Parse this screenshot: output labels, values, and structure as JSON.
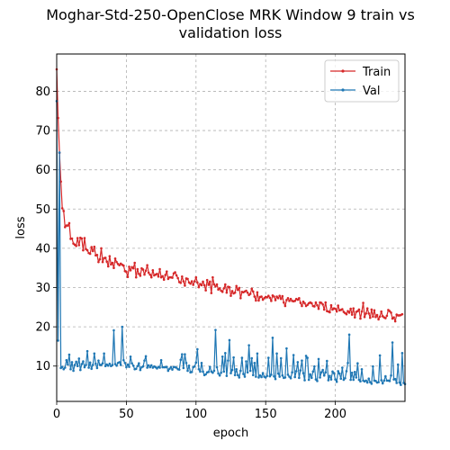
{
  "chart_data": {
    "type": "line",
    "title_lines": [
      "Moghar-Std-250-OpenClose MRK Window 9 train vs",
      "validation loss"
    ],
    "xlabel": "epoch",
    "ylabel": "loss",
    "xlim": [
      0,
      250
    ],
    "ylim": [
      1.0,
      89.5
    ],
    "xticks": [
      0,
      50,
      100,
      150,
      200
    ],
    "yticks": [
      10,
      20,
      30,
      40,
      50,
      60,
      70,
      80
    ],
    "grid": true,
    "legend_position": "top-right",
    "series": [
      {
        "name": "Train",
        "color": "#d62728",
        "values": [
          85.6,
          73.2,
          64.3,
          57.0,
          50.2,
          49.5,
          45.4,
          45.8,
          45.8,
          46.4,
          42.4,
          42.5,
          41.2,
          40.9,
          40.6,
          42.6,
          40.8,
          42.7,
          42.5,
          39.5,
          42.6,
          39.8,
          39.5,
          38.8,
          38.6,
          40.3,
          39.3,
          40.4,
          38.2,
          38.3,
          36.5,
          37.2,
          40.0,
          36.5,
          37.5,
          37.6,
          36.6,
          35.4,
          38.0,
          35.9,
          36.3,
          35.0,
          37.4,
          36.5,
          36.0,
          35.7,
          36.1,
          35.8,
          35.6,
          34.2,
          34.0,
          32.7,
          35.3,
          34.4,
          35.2,
          34.9,
          36.3,
          32.6,
          34.7,
          33.5,
          33.0,
          34.9,
          34.6,
          33.3,
          34.3,
          35.7,
          33.8,
          33.3,
          32.6,
          34.4,
          33.1,
          33.3,
          33.5,
          32.8,
          34.7,
          32.6,
          32.9,
          32.0,
          33.2,
          34.1,
          32.2,
          32.6,
          32.6,
          32.5,
          33.6,
          33.9,
          33.1,
          32.4,
          31.4,
          31.2,
          32.8,
          31.6,
          30.5,
          32.3,
          32.2,
          31.3,
          31.0,
          31.6,
          30.7,
          31.6,
          32.6,
          31.3,
          30.1,
          30.9,
          30.6,
          31.5,
          30.6,
          29.3,
          31.9,
          30.7,
          31.5,
          28.6,
          32.6,
          30.8,
          30.3,
          30.8,
          29.5,
          29.8,
          29.2,
          28.9,
          29.8,
          30.8,
          28.7,
          30.2,
          30.1,
          27.9,
          29.1,
          28.5,
          28.7,
          30.4,
          29.4,
          29.9,
          27.3,
          28.9,
          28.8,
          29.0,
          29.2,
          28.7,
          28.1,
          28.4,
          29.7,
          29.0,
          27.7,
          26.7,
          28.8,
          26.7,
          27.6,
          27.7,
          26.9,
          27.3,
          27.6,
          27.5,
          27.9,
          27.4,
          26.6,
          28.0,
          27.7,
          26.8,
          27.7,
          27.3,
          27.9,
          27.1,
          27.8,
          26.2,
          25.3,
          26.8,
          27.3,
          26.6,
          27.1,
          26.6,
          26.5,
          26.6,
          27.1,
          26.9,
          27.3,
          26.1,
          25.3,
          26.4,
          26.0,
          25.3,
          25.6,
          26.0,
          26.2,
          26.0,
          25.3,
          25.2,
          26.2,
          25.5,
          24.6,
          26.2,
          26.1,
          25.7,
          24.4,
          26.2,
          24.0,
          23.9,
          23.7,
          25.5,
          24.4,
          24.7,
          24.6,
          23.9,
          25.4,
          24.2,
          24.3,
          24.5,
          23.8,
          23.5,
          23.2,
          24.0,
          23.6,
          24.6,
          23.1,
          24.7,
          22.4,
          23.8,
          24.0,
          24.4,
          22.1,
          23.9,
          26.1,
          22.5,
          23.4,
          24.7,
          23.4,
          22.3,
          24.4,
          22.6,
          24.2,
          22.5,
          23.0,
          21.9,
          22.6,
          23.9,
          22.7,
          22.4,
          22.2,
          22.8,
          24.3,
          24.0,
          23.6,
          22.1,
          22.4,
          21.4,
          23.1,
          22.9,
          22.9,
          23.0,
          23.2
        ]
      },
      {
        "name": "Val",
        "color": "#1f77b4",
        "values": [
          77.5,
          16.5,
          64.4,
          9.5,
          9.8,
          9.2,
          9.6,
          11.5,
          10.4,
          12.9,
          9.2,
          11.0,
          8.8,
          10.3,
          11.1,
          10.0,
          11.9,
          9.0,
          10.5,
          11.2,
          9.7,
          10.3,
          13.8,
          9.6,
          10.9,
          9.3,
          10.3,
          13.2,
          10.6,
          9.5,
          11.4,
          10.3,
          10.3,
          10.7,
          13.2,
          10.0,
          10.4,
          10.1,
          10.6,
          10.0,
          10.3,
          19.1,
          10.5,
          10.1,
          10.8,
          11.0,
          10.3,
          20.0,
          11.5,
          10.8,
          9.7,
          10.4,
          9.8,
          12.4,
          10.7,
          10.1,
          9.2,
          9.3,
          10.0,
          10.7,
          9.0,
          9.7,
          9.9,
          11.4,
          12.5,
          9.6,
          10.2,
          9.7,
          10.2,
          9.6,
          9.9,
          9.7,
          9.4,
          9.8,
          9.6,
          11.5,
          9.7,
          9.7,
          9.7,
          9.8,
          8.8,
          9.3,
          9.7,
          9.1,
          9.8,
          9.7,
          9.6,
          9.2,
          9.1,
          11.6,
          13.0,
          9.5,
          13.0,
          10.8,
          8.8,
          10.1,
          8.4,
          8.5,
          9.7,
          9.9,
          10.9,
          14.3,
          9.2,
          8.6,
          10.8,
          8.6,
          7.7,
          7.9,
          8.4,
          8.5,
          9.8,
          8.6,
          8.3,
          8.8,
          19.2,
          9.7,
          8.1,
          7.6,
          8.3,
          12.4,
          8.6,
          13.3,
          7.5,
          11.4,
          16.6,
          8.2,
          9.0,
          12.2,
          7.7,
          9.2,
          7.7,
          7.1,
          8.8,
          12.1,
          8.0,
          7.3,
          11.2,
          8.4,
          15.3,
          8.8,
          12.0,
          7.7,
          10.8,
          7.3,
          13.2,
          7.1,
          7.6,
          7.2,
          8.2,
          7.3,
          7.1,
          7.5,
          12.1,
          7.4,
          7.8,
          17.2,
          7.4,
          6.7,
          13.2,
          8.1,
          7.3,
          12.0,
          7.6,
          7.0,
          7.1,
          14.5,
          7.8,
          7.3,
          6.9,
          8.4,
          12.8,
          7.2,
          8.7,
          11.0,
          7.0,
          8.9,
          11.4,
          8.2,
          6.4,
          12.6,
          12.1,
          6.5,
          7.9,
          7.0,
          8.6,
          9.9,
          6.6,
          6.2,
          11.8,
          7.1,
          8.4,
          9.0,
          7.6,
          8.4,
          11.3,
          6.4,
          7.5,
          6.6,
          8.6,
          8.2,
          6.6,
          6.0,
          8.7,
          8.1,
          6.8,
          9.6,
          6.5,
          6.9,
          8.7,
          10.8,
          18.0,
          6.5,
          8.3,
          6.5,
          8.5,
          7.1,
          10.7,
          6.5,
          6.1,
          9.2,
          6.3,
          6.1,
          6.3,
          5.8,
          6.8,
          5.9,
          5.5,
          9.9,
          6.3,
          6.2,
          5.8,
          5.9,
          12.7,
          6.4,
          5.6,
          6.3,
          7.4,
          6.3,
          6.3,
          6.2,
          7.6,
          16.0,
          6.6,
          6.7,
          5.7,
          10.4,
          5.8,
          5.2,
          13.3,
          5.7,
          5.4
        ]
      }
    ]
  }
}
